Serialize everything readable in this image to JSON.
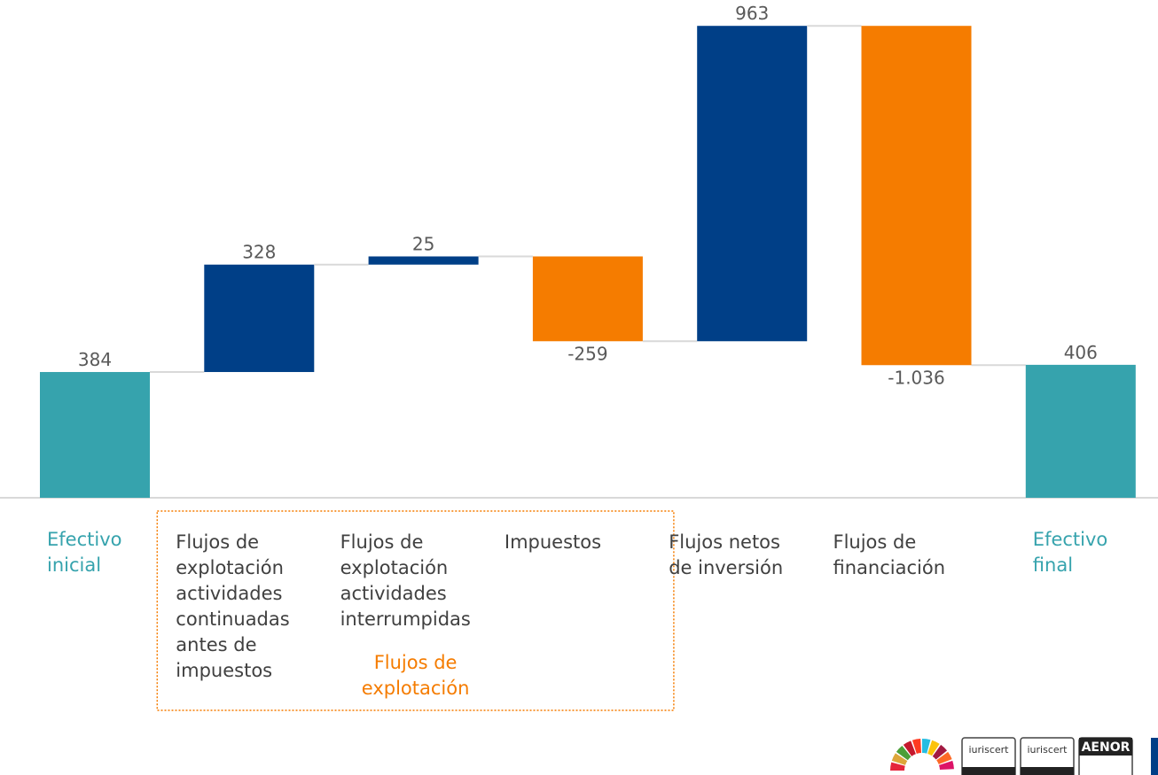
{
  "chart_data": {
    "type": "waterfall",
    "categories": [
      "Efectivo\ninicial",
      "Flujos de\nexplotación\nactividades\ncontinuadas\nantes de\nimpuestos",
      "Flujos de\nexplotación\nactividades\ninterrumpidas",
      "Impuestos",
      "Flujos netos\nde inversión",
      "Flujos de\nfinanciación",
      "Efectivo\nfinal"
    ],
    "values": [
      384,
      328,
      25,
      -259,
      963,
      -1036,
      406
    ],
    "value_labels": [
      "384",
      "328",
      "25",
      "-259",
      "963",
      "-1.036",
      "406"
    ],
    "measure": [
      "absolute",
      "relative",
      "relative",
      "relative",
      "relative",
      "relative",
      "total"
    ],
    "colors": {
      "total": "#36a3ad",
      "increase": "#003f87",
      "decrease": "#f57c00"
    },
    "ylim": [
      0,
      1520
    ],
    "group": {
      "label": "Flujos de\nexplotación",
      "from": 1,
      "to": 3
    },
    "logos": [
      "iuriscert",
      "iuriscert",
      "AENOR"
    ]
  }
}
